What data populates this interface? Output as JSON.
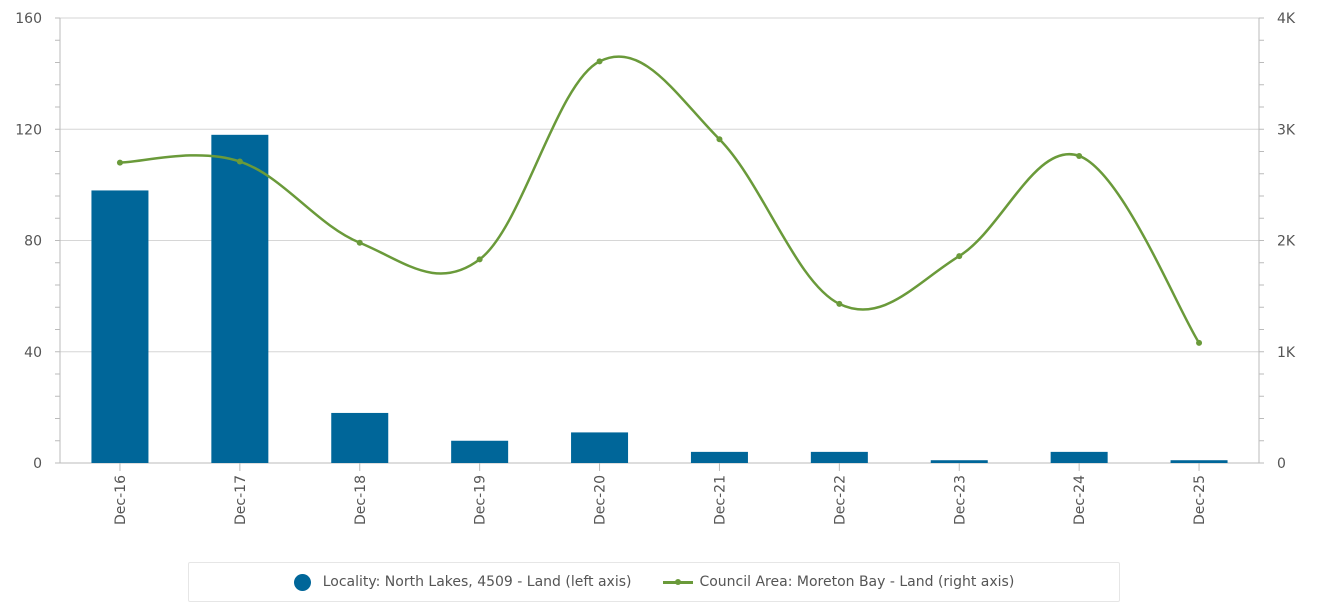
{
  "chart_data": {
    "type": "bar",
    "categories": [
      "Dec-16",
      "Dec-17",
      "Dec-18",
      "Dec-19",
      "Dec-20",
      "Dec-21",
      "Dec-22",
      "Dec-23",
      "Dec-24",
      "Dec-25"
    ],
    "series": [
      {
        "name": "Locality: North Lakes, 4509 - Land (left axis)",
        "type": "bar",
        "axis": "left",
        "color": "#006699",
        "values": [
          98,
          118,
          18,
          8,
          11,
          4,
          4,
          1,
          4,
          1
        ]
      },
      {
        "name": "Council Area: Moreton Bay - Land (right axis)",
        "type": "line",
        "axis": "right",
        "color": "#6a9a3a",
        "values": [
          2700,
          2710,
          1980,
          1830,
          3610,
          2910,
          1430,
          1860,
          2760,
          1080
        ]
      }
    ],
    "y_left": {
      "min": 0,
      "max": 160,
      "ticks": [
        "0",
        "40",
        "80",
        "120",
        "160"
      ]
    },
    "y_right": {
      "min": 0,
      "max": 4000,
      "ticks": [
        "0",
        "1K",
        "2K",
        "3K",
        "4K"
      ]
    },
    "grid": true,
    "legend_position": "bottom"
  }
}
